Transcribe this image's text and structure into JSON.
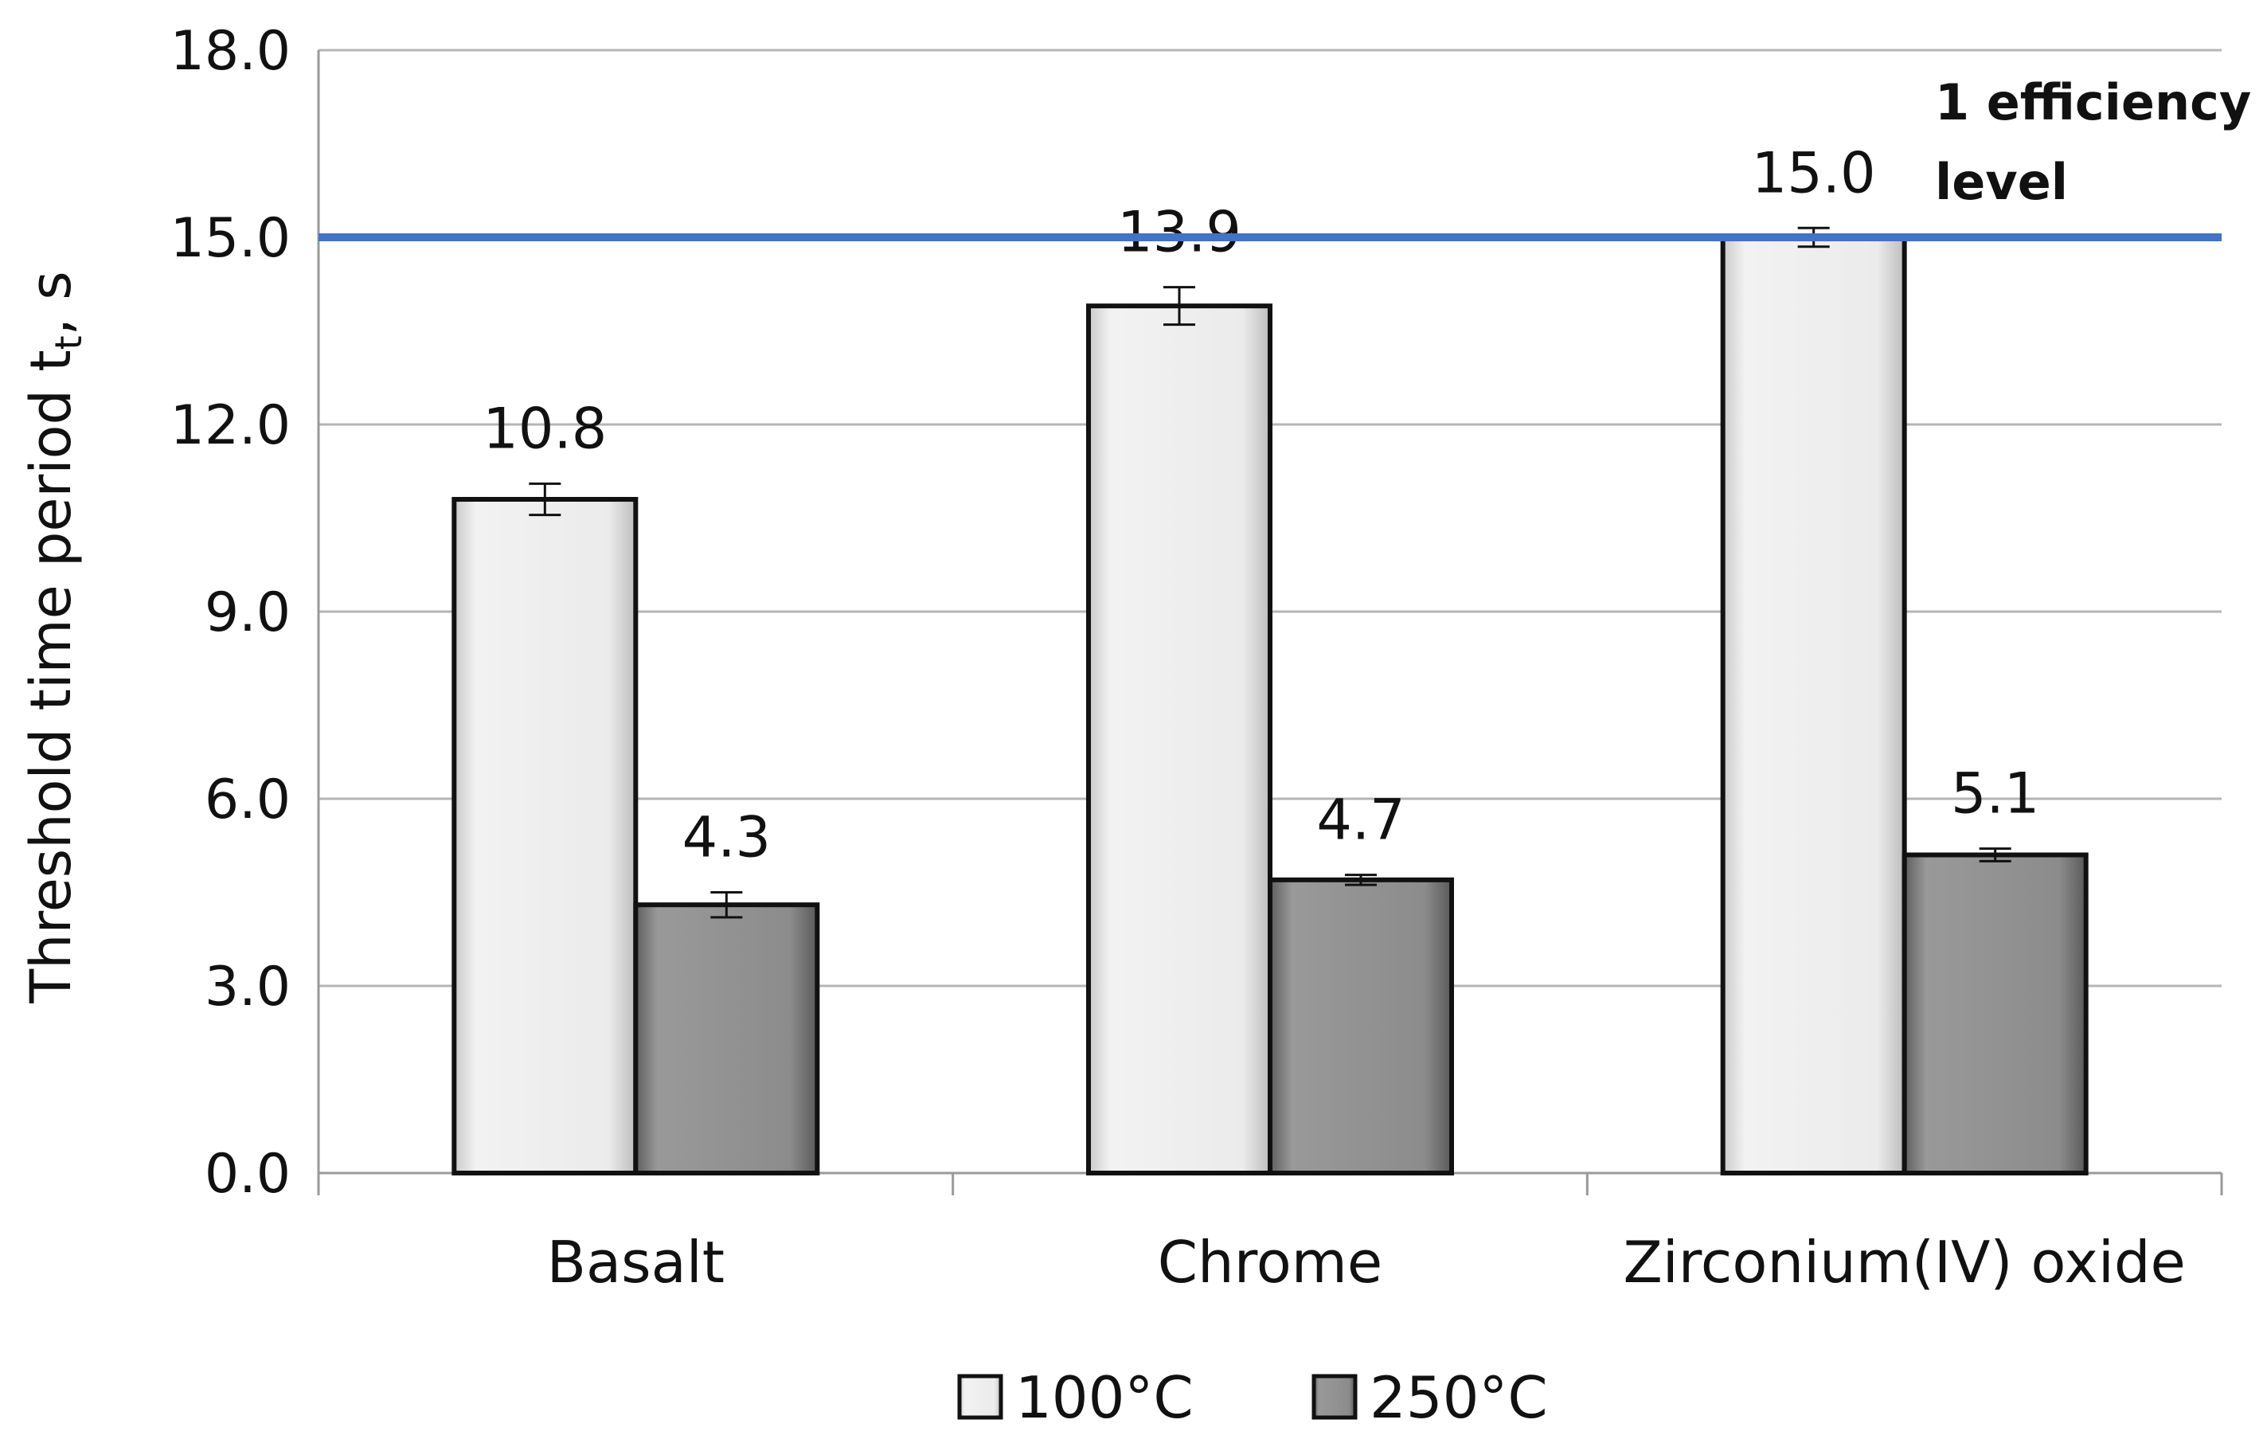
{
  "chart_data": {
    "type": "bar",
    "categories": [
      "Basalt",
      "Chrome",
      "Zirconium(IV) oxide"
    ],
    "series": [
      {
        "name": "100°C",
        "values": [
          10.8,
          13.9,
          15.0
        ],
        "errors": [
          0.25,
          0.3,
          0.15
        ],
        "color": "#e6e6e6"
      },
      {
        "name": "250°C",
        "values": [
          4.3,
          4.7,
          5.1
        ],
        "errors": [
          0.2,
          0.08,
          0.1
        ],
        "color": "#8a8a8a"
      }
    ],
    "data_labels": [
      [
        "10.8",
        "13.9",
        "15.0"
      ],
      [
        "4.3",
        "4.7",
        "5.1"
      ]
    ],
    "ylabel": "Threshold time period t",
    "ylabel_subscript": "t",
    "ylabel_unit": ", s",
    "ylim": [
      0,
      18
    ],
    "yticks": [
      "0.0",
      "3.0",
      "6.0",
      "9.0",
      "12.0",
      "15.0",
      "18.0"
    ],
    "reference_line": {
      "value": 15.0,
      "label_line1": "1 efficiency",
      "label_line2": "level",
      "color": "#4472c4"
    },
    "grid": true,
    "legend_position": "bottom"
  }
}
